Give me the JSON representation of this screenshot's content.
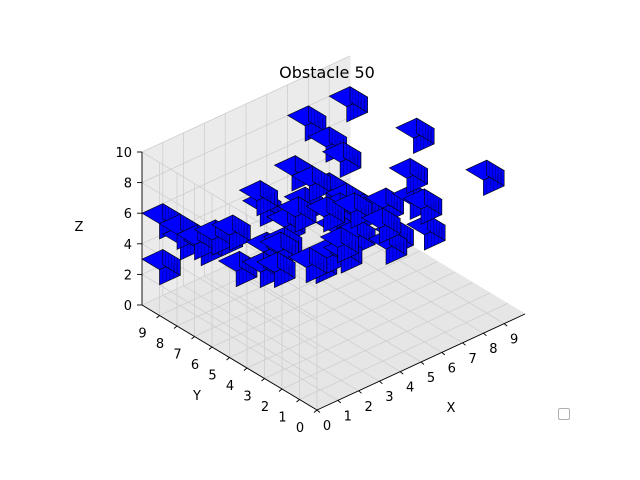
{
  "chart_data": {
    "type": "3d-voxel",
    "title": "Obstacle 50",
    "xlabel": "X",
    "ylabel": "Y",
    "zlabel": "Z",
    "xlim": [
      0,
      10
    ],
    "ylim": [
      0,
      10
    ],
    "zlim": [
      0,
      10
    ],
    "xticks": [
      0,
      1,
      2,
      3,
      4,
      5,
      6,
      7,
      8,
      9
    ],
    "yticks": [
      0,
      1,
      2,
      3,
      4,
      5,
      6,
      7,
      8,
      9
    ],
    "zticks": [
      0,
      2,
      4,
      6,
      8,
      10
    ],
    "grid": true,
    "legend": "lower-right (empty)",
    "face_color": "#0000ff",
    "edge_color": "#000000",
    "obstacle_size": [
      1,
      1,
      1
    ],
    "obstacles": [
      [
        8,
        4,
        9
      ],
      [
        6,
        2,
        9
      ],
      [
        2,
        2,
        9
      ],
      [
        2,
        1,
        7
      ],
      [
        1,
        0,
        9
      ],
      [
        4,
        1,
        9
      ],
      [
        3,
        4,
        9
      ],
      [
        8,
        0,
        9
      ],
      [
        5,
        0,
        9
      ],
      [
        3,
        5,
        9
      ],
      [
        3,
        0,
        9
      ],
      [
        6,
        1,
        6
      ],
      [
        5,
        2,
        5
      ],
      [
        5,
        4,
        6
      ],
      [
        2,
        3,
        5
      ],
      [
        7,
        3,
        6
      ],
      [
        7,
        7,
        6
      ],
      [
        7,
        9,
        7
      ],
      [
        6,
        6,
        4
      ],
      [
        8,
        9,
        5
      ],
      [
        9,
        9,
        7
      ],
      [
        3,
        3,
        5
      ],
      [
        3,
        7,
        6
      ],
      [
        4,
        8,
        4
      ],
      [
        5,
        5,
        4
      ],
      [
        6,
        5,
        3
      ],
      [
        7,
        4,
        3
      ],
      [
        8,
        7,
        2
      ],
      [
        8,
        8,
        2
      ],
      [
        8,
        9,
        2
      ],
      [
        6,
        8,
        3
      ],
      [
        6,
        9,
        1
      ],
      [
        5,
        9,
        0
      ],
      [
        5,
        6,
        1
      ],
      [
        4,
        7,
        2
      ],
      [
        4,
        8,
        0
      ],
      [
        5,
        8,
        1
      ],
      [
        7,
        7,
        2
      ],
      [
        2,
        7,
        2
      ],
      [
        2,
        9,
        2
      ],
      [
        3,
        9,
        2
      ],
      [
        1,
        9,
        3
      ],
      [
        0,
        9,
        2
      ],
      [
        0,
        8,
        5
      ],
      [
        0,
        9,
        5
      ],
      [
        0,
        6,
        6
      ],
      [
        0,
        7,
        5
      ],
      [
        0,
        5,
        7
      ],
      [
        4,
        6,
        5
      ],
      [
        3,
        6,
        2
      ]
    ]
  }
}
